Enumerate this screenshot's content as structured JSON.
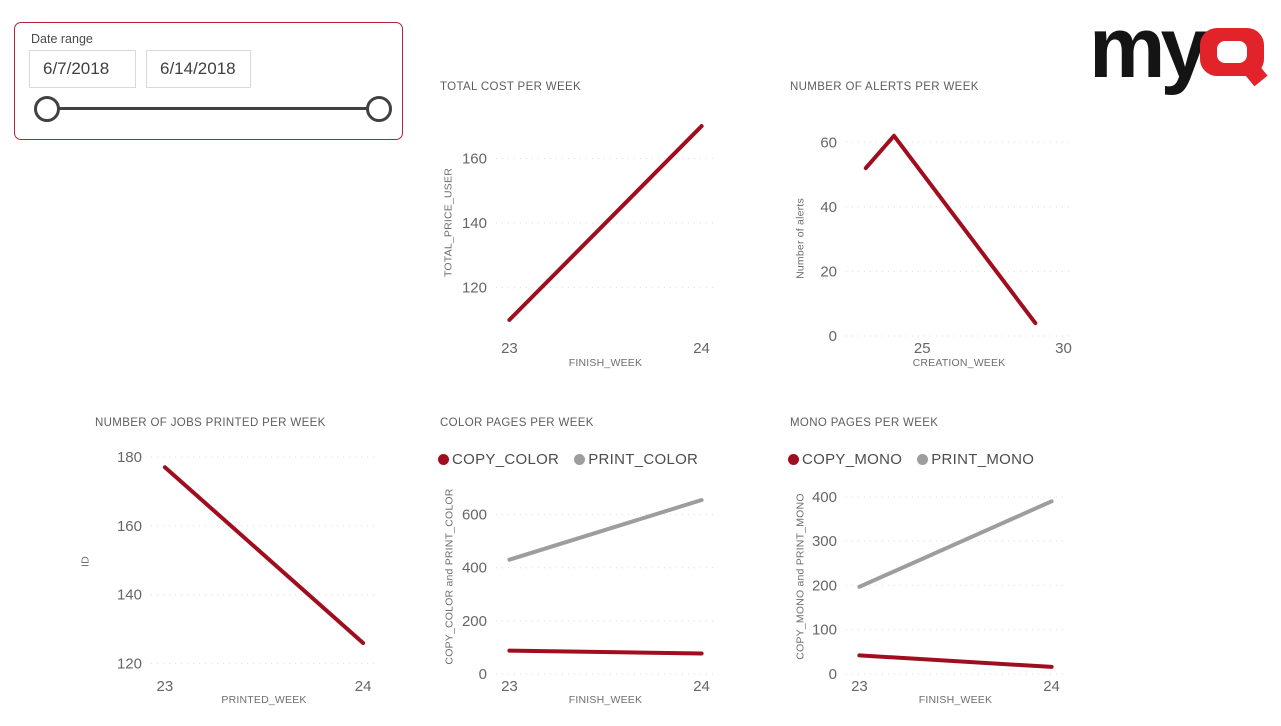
{
  "logo": {
    "text_black": "my",
    "text_red": "Q",
    "black_color": "#141414",
    "red_color": "#E2232A"
  },
  "date_slicer": {
    "label": "Date range",
    "start_value": "6/7/2018",
    "end_value": "6/14/2018",
    "border_color": "#B12437"
  },
  "colors": {
    "series_red": "#A00D1E",
    "series_gray": "#9D9D9D",
    "grid": "#D9D9D9",
    "tick_text": "#666666"
  },
  "chart_data": [
    {
      "type": "line",
      "title": "TOTAL COST PER WEEK",
      "xlabel": "FINISH_WEEK",
      "ylabel": "TOTAL_PRICE_USER",
      "x_ticks": [
        23,
        24
      ],
      "y_ticks": [
        120,
        140,
        160
      ],
      "x_domain": [
        22.93,
        24.07
      ],
      "y_domain": [
        105,
        175
      ],
      "grid": "dotted",
      "legend": false,
      "series": [
        {
          "name": "TOTAL_PRICE_USER",
          "color": "#A00D1E",
          "x": [
            23,
            24
          ],
          "values": [
            110,
            170
          ]
        }
      ]
    },
    {
      "type": "line",
      "title": "NUMBER OF ALERTS PER WEEK",
      "xlabel": "CREATION_WEEK",
      "ylabel": "Number of alerts",
      "x_ticks": [
        25,
        30
      ],
      "y_ticks": [
        0,
        20,
        40,
        60
      ],
      "x_domain": [
        22.3,
        30.3
      ],
      "y_domain": [
        0,
        70
      ],
      "grid": "dotted",
      "legend": false,
      "series": [
        {
          "name": "Number of alerts",
          "color": "#A00D1E",
          "x": [
            23,
            24,
            29
          ],
          "values": [
            52,
            62,
            4
          ]
        }
      ]
    },
    {
      "type": "line",
      "title": "NUMBER OF JOBS PRINTED PER WEEK",
      "xlabel": "PRINTED_WEEK",
      "ylabel": "ID",
      "x_ticks": [
        23,
        24
      ],
      "y_ticks": [
        120,
        140,
        160,
        180
      ],
      "x_domain": [
        22.93,
        24.07
      ],
      "y_domain": [
        117,
        182
      ],
      "grid": "dotted",
      "legend": false,
      "series": [
        {
          "name": "ID",
          "color": "#A00D1E",
          "x": [
            23,
            24
          ],
          "values": [
            177,
            126
          ]
        }
      ]
    },
    {
      "type": "line",
      "title": "COLOR PAGES PER WEEK",
      "xlabel": "FINISH_WEEK",
      "ylabel": "COPY_COLOR and PRINT_COLOR",
      "x_ticks": [
        23,
        24
      ],
      "y_ticks": [
        0,
        200,
        400,
        600
      ],
      "x_domain": [
        22.93,
        24.07
      ],
      "y_domain": [
        0,
        700
      ],
      "grid": "dotted",
      "legend": true,
      "series": [
        {
          "name": "COPY_COLOR",
          "color": "#A00D1E",
          "x": [
            23,
            24
          ],
          "values": [
            88,
            77
          ]
        },
        {
          "name": "PRINT_COLOR",
          "color": "#9D9D9D",
          "x": [
            23,
            24
          ],
          "values": [
            430,
            655
          ]
        }
      ]
    },
    {
      "type": "line",
      "title": "MONO PAGES PER WEEK",
      "xlabel": "FINISH_WEEK",
      "ylabel": "COPY_MONO and PRINT_MONO",
      "x_ticks": [
        23,
        24
      ],
      "y_ticks": [
        0,
        100,
        200,
        300,
        400
      ],
      "x_domain": [
        22.93,
        24.07
      ],
      "y_domain": [
        0,
        420
      ],
      "grid": "dotted",
      "legend": true,
      "series": [
        {
          "name": "COPY_MONO",
          "color": "#A00D1E",
          "x": [
            23,
            24
          ],
          "values": [
            42,
            16
          ]
        },
        {
          "name": "PRINT_MONO",
          "color": "#9D9D9D",
          "x": [
            23,
            24
          ],
          "values": [
            197,
            390
          ]
        }
      ]
    }
  ]
}
